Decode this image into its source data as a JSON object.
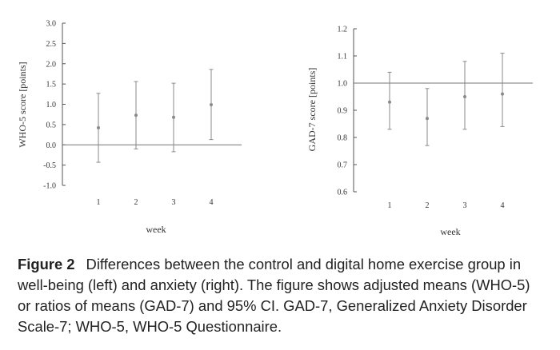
{
  "chart_data": [
    {
      "type": "scatter",
      "title": "",
      "xlabel": "week",
      "ylabel": "WHO-5 score [points]",
      "categories": [
        "1",
        "2",
        "3",
        "4"
      ],
      "yticks": [
        "3.0",
        "2.5",
        "2.0",
        "1.5",
        "1.0",
        "0.5",
        "0.0",
        "-0.5",
        "-1.0"
      ],
      "ylim": [
        -1.0,
        3.0
      ],
      "reference_line": 0.0,
      "grid": false,
      "series": [
        {
          "values": [
            0.42,
            0.73,
            0.68,
            0.99
          ],
          "ci_lower": [
            -0.43,
            -0.1,
            -0.17,
            0.13
          ],
          "ci_upper": [
            1.27,
            1.56,
            1.52,
            1.86
          ]
        }
      ]
    },
    {
      "type": "scatter",
      "title": "",
      "xlabel": "week",
      "ylabel": "GAD-7 score [points]",
      "categories": [
        "1",
        "2",
        "3",
        "4"
      ],
      "yticks": [
        "1.2",
        "1.1",
        "1.0",
        "0.9",
        "0.8",
        "0.7",
        "0.6"
      ],
      "ylim": [
        0.6,
        1.2
      ],
      "reference_line": 1.0,
      "grid": false,
      "series": [
        {
          "values": [
            0.93,
            0.87,
            0.95,
            0.96
          ],
          "ci_lower": [
            0.83,
            0.77,
            0.83,
            0.84
          ],
          "ci_upper": [
            1.04,
            0.98,
            1.08,
            1.11
          ]
        }
      ]
    }
  ],
  "caption": {
    "label": "Figure 2",
    "text": "Differences between the control and digital home exercise group in well-being (left) and anxiety (right). The figure shows adjusted means (WHO-5) or ratios of means (GAD-7) and 95% CI. GAD-7, Generalized Anxiety Disorder Scale-7; WHO-5, WHO-5 Questionnaire."
  },
  "colors": {
    "marker": "#8a8a8a",
    "axis": "#555555",
    "text": "#333333"
  }
}
